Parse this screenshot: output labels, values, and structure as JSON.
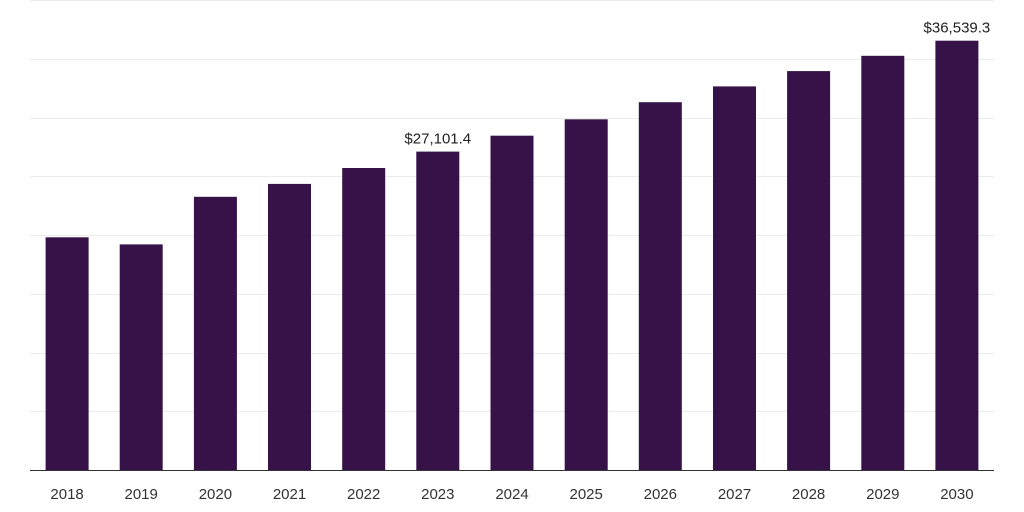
{
  "colors": {
    "bar": "#361249",
    "grid": "#ebebeb",
    "axis": "#333333"
  },
  "chart_data": {
    "type": "bar",
    "title": "",
    "xlabel": "",
    "ylabel": "",
    "ylim": [
      0,
      40000
    ],
    "grid": true,
    "categories": [
      "2018",
      "2019",
      "2020",
      "2021",
      "2022",
      "2023",
      "2024",
      "2025",
      "2026",
      "2027",
      "2028",
      "2029",
      "2030"
    ],
    "values": [
      19800,
      19200,
      23250,
      24350,
      25700,
      27101.4,
      28450,
      29850,
      31300,
      32650,
      33950,
      35250,
      36539.3
    ],
    "data_labels": [
      {
        "index": 5,
        "text": "$27,101.4"
      },
      {
        "index": 12,
        "text": "$36,539.3"
      }
    ]
  }
}
